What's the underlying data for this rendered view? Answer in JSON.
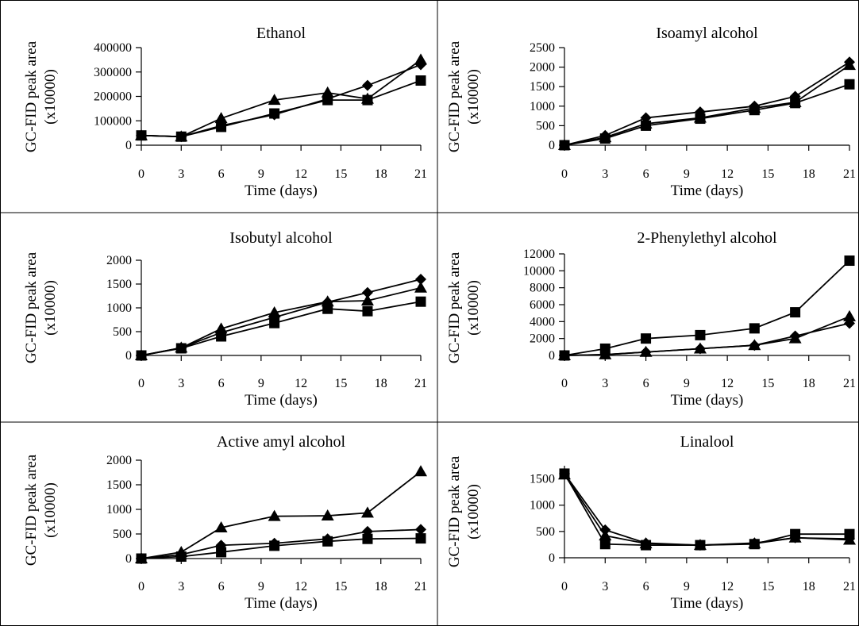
{
  "figure": {
    "layout": "3x2 grid of line charts",
    "line_color": "#000000",
    "marker_shapes": [
      "diamond",
      "triangle",
      "square"
    ]
  },
  "chart_data": [
    {
      "type": "line",
      "title": "Ethanol",
      "xlabel": "Time (days)",
      "ylabel": [
        "GC-FID peak area",
        "(x10000)"
      ],
      "x": [
        0,
        3,
        6,
        10,
        14,
        17,
        21
      ],
      "xticks": [
        0,
        3,
        6,
        9,
        12,
        15,
        18,
        21
      ],
      "xlim": [
        0,
        21
      ],
      "yticks": [
        0,
        100000,
        200000,
        300000,
        400000
      ],
      "ylim": [
        0,
        400000
      ],
      "series": [
        {
          "marker": "diamond",
          "values": [
            40000,
            35000,
            80000,
            125000,
            190000,
            245000,
            330000
          ]
        },
        {
          "marker": "triangle",
          "values": [
            40000,
            35000,
            110000,
            185000,
            215000,
            190000,
            350000
          ]
        },
        {
          "marker": "square",
          "values": [
            40000,
            35000,
            75000,
            130000,
            185000,
            185000,
            265000
          ]
        }
      ]
    },
    {
      "type": "line",
      "title": "Isoamyl alcohol",
      "xlabel": "Time (days)",
      "ylabel": [
        "GC-FID peak area",
        "(x10000)"
      ],
      "x": [
        0,
        3,
        6,
        10,
        14,
        17,
        21
      ],
      "xticks": [
        0,
        3,
        6,
        9,
        12,
        15,
        18,
        21
      ],
      "xlim": [
        0,
        21
      ],
      "yticks": [
        0,
        500,
        1000,
        1500,
        2000,
        2500
      ],
      "ylim": [
        0,
        2500
      ],
      "series": [
        {
          "marker": "diamond",
          "values": [
            0,
            250,
            700,
            850,
            1000,
            1250,
            2130
          ]
        },
        {
          "marker": "triangle",
          "values": [
            0,
            200,
            550,
            700,
            950,
            1100,
            2050
          ]
        },
        {
          "marker": "square",
          "values": [
            0,
            170,
            500,
            680,
            900,
            1080,
            1560
          ]
        }
      ]
    },
    {
      "type": "line",
      "title": "Isobutyl alcohol",
      "xlabel": "Time (days)",
      "ylabel": [
        "GC-FID peak area",
        "(x10000)"
      ],
      "x": [
        0,
        3,
        6,
        10,
        14,
        17,
        21
      ],
      "xticks": [
        0,
        3,
        6,
        9,
        12,
        15,
        18,
        21
      ],
      "xlim": [
        0,
        21
      ],
      "yticks": [
        0,
        500,
        1000,
        1500,
        2000
      ],
      "ylim": [
        0,
        2000
      ],
      "series": [
        {
          "marker": "diamond",
          "values": [
            0,
            160,
            480,
            800,
            1120,
            1320,
            1600
          ]
        },
        {
          "marker": "triangle",
          "values": [
            0,
            160,
            560,
            900,
            1130,
            1150,
            1420
          ]
        },
        {
          "marker": "square",
          "values": [
            0,
            150,
            400,
            680,
            980,
            930,
            1130
          ]
        }
      ]
    },
    {
      "type": "line",
      "title": "2-Phenylethyl alcohol",
      "xlabel": "Time (days)",
      "ylabel": [
        "GC-FID peak area",
        "(x10000)"
      ],
      "x": [
        0,
        3,
        6,
        10,
        14,
        17,
        21
      ],
      "xticks": [
        0,
        3,
        6,
        9,
        12,
        15,
        18,
        21
      ],
      "xlim": [
        0,
        21
      ],
      "yticks": [
        0,
        2000,
        4000,
        6000,
        8000,
        10000,
        12000
      ],
      "ylim": [
        0,
        12000
      ],
      "series": [
        {
          "marker": "diamond",
          "values": [
            0,
            100,
            400,
            800,
            1200,
            2300,
            3800
          ]
        },
        {
          "marker": "triangle",
          "values": [
            0,
            100,
            400,
            800,
            1200,
            2000,
            4600
          ]
        },
        {
          "marker": "square",
          "values": [
            0,
            800,
            2000,
            2400,
            3200,
            5100,
            11200
          ]
        }
      ]
    },
    {
      "type": "line",
      "title": "Active amyl alcohol",
      "xlabel": "Time (days)",
      "ylabel": [
        "GC-FID peak area",
        "(x10000)"
      ],
      "x": [
        0,
        3,
        6,
        10,
        14,
        17,
        21
      ],
      "xticks": [
        0,
        3,
        6,
        9,
        12,
        15,
        18,
        21
      ],
      "xlim": [
        0,
        21
      ],
      "yticks": [
        0,
        500,
        1000,
        1500,
        2000
      ],
      "ylim": [
        0,
        2000
      ],
      "series": [
        {
          "marker": "diamond",
          "values": [
            0,
            80,
            270,
            310,
            400,
            550,
            590
          ]
        },
        {
          "marker": "triangle",
          "values": [
            0,
            130,
            630,
            860,
            870,
            930,
            1770
          ]
        },
        {
          "marker": "square",
          "values": [
            0,
            40,
            130,
            260,
            350,
            400,
            410
          ]
        }
      ]
    },
    {
      "type": "line",
      "title": "Linalool",
      "xlabel": "Time (days)",
      "ylabel": [
        "GC-FID peak area",
        "(x10000)"
      ],
      "x": [
        0,
        3,
        6,
        10,
        14,
        17,
        21
      ],
      "xticks": [
        0,
        3,
        6,
        9,
        12,
        15,
        18,
        21
      ],
      "xlim": [
        0,
        21
      ],
      "yticks": [
        0,
        500,
        1000,
        1500
      ],
      "ylim": [
        0,
        1750
      ],
      "series": [
        {
          "marker": "diamond",
          "values": [
            1600,
            530,
            280,
            240,
            280,
            380,
            360
          ]
        },
        {
          "marker": "triangle",
          "values": [
            1580,
            420,
            270,
            240,
            270,
            380,
            340
          ]
        },
        {
          "marker": "square",
          "values": [
            1600,
            260,
            240,
            240,
            260,
            450,
            450
          ]
        }
      ]
    }
  ]
}
